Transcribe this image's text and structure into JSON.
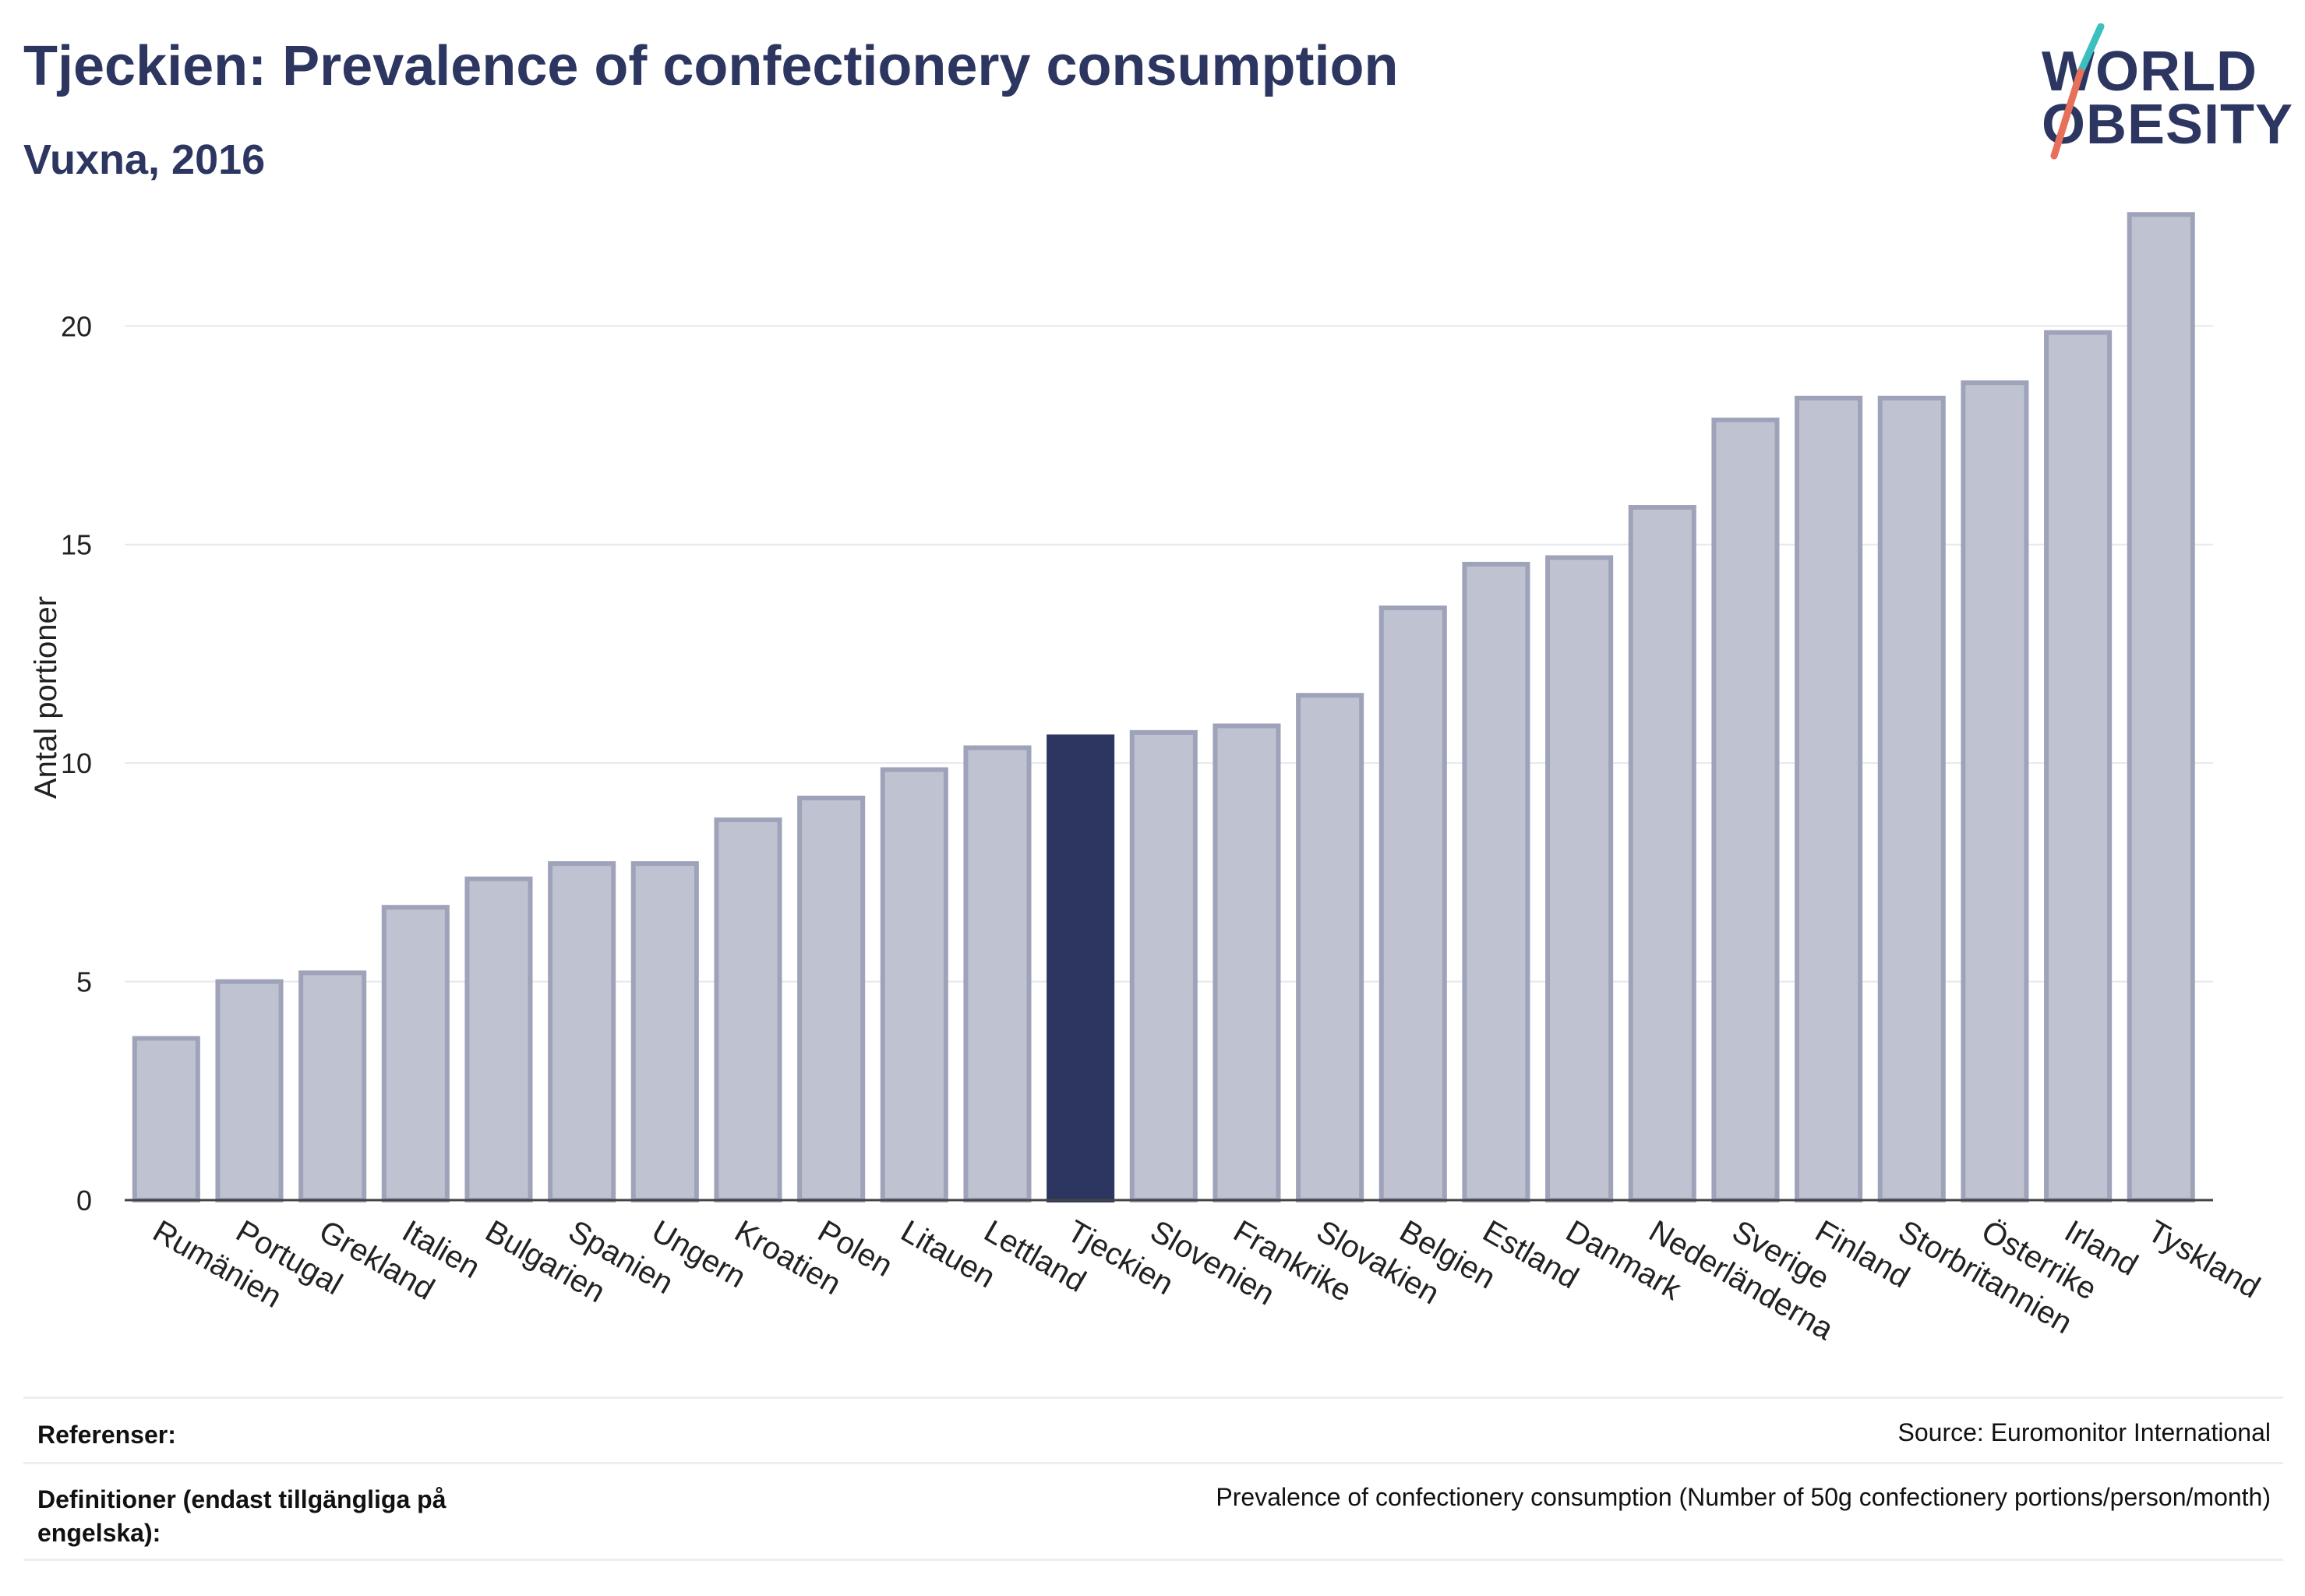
{
  "header": {
    "title": "Tjeckien: Prevalence of confectionery consumption",
    "subtitle": "Vuxna, 2016"
  },
  "logo": {
    "line1": "WORLD",
    "line2": "OBESITY",
    "colors": {
      "text": "#2c3660",
      "slash_top": "#3bbfbf",
      "slash_bottom": "#e8705a"
    }
  },
  "colors": {
    "bar": "#bfc3d1",
    "bar_edge": "#9ea3b9",
    "highlight": "#2c3660",
    "grid": "#e6e8ef",
    "axis": "#444444",
    "text": "#222222"
  },
  "chart_data": {
    "type": "bar",
    "title": "",
    "xlabel": "",
    "ylabel": "Antal portioner",
    "ylim": [
      0,
      23
    ],
    "yticks": [
      0,
      5,
      10,
      15,
      20
    ],
    "grid": true,
    "highlight": "Tjeckien",
    "categories": [
      "Rumänien",
      "Portugal",
      "Grekland",
      "Italien",
      "Bulgarien",
      "Spanien",
      "Ungern",
      "Kroatien",
      "Polen",
      "Litauen",
      "Lettland",
      "Tjeckien",
      "Slovenien",
      "Frankrike",
      "Slovakien",
      "Belgien",
      "Estland",
      "Danmark",
      "Nederländerna",
      "Sverige",
      "Finland",
      "Storbritannien",
      "Österrike",
      "Irland",
      "Tyskland"
    ],
    "values": [
      3.7,
      5.0,
      5.2,
      6.7,
      7.35,
      7.7,
      7.7,
      8.7,
      9.2,
      9.85,
      10.35,
      10.6,
      10.7,
      10.85,
      11.55,
      13.55,
      14.55,
      14.7,
      15.85,
      17.85,
      18.35,
      18.35,
      18.7,
      19.85,
      22.55
    ]
  },
  "footer": {
    "references_label": "Referenser:",
    "references_value": "Source: Euromonitor International",
    "definitions_label": "Definitioner (endast tillgängliga på engelska):",
    "definitions_value": "Prevalence of confectionery consumption (Number of 50g confectionery portions/person/month)"
  }
}
